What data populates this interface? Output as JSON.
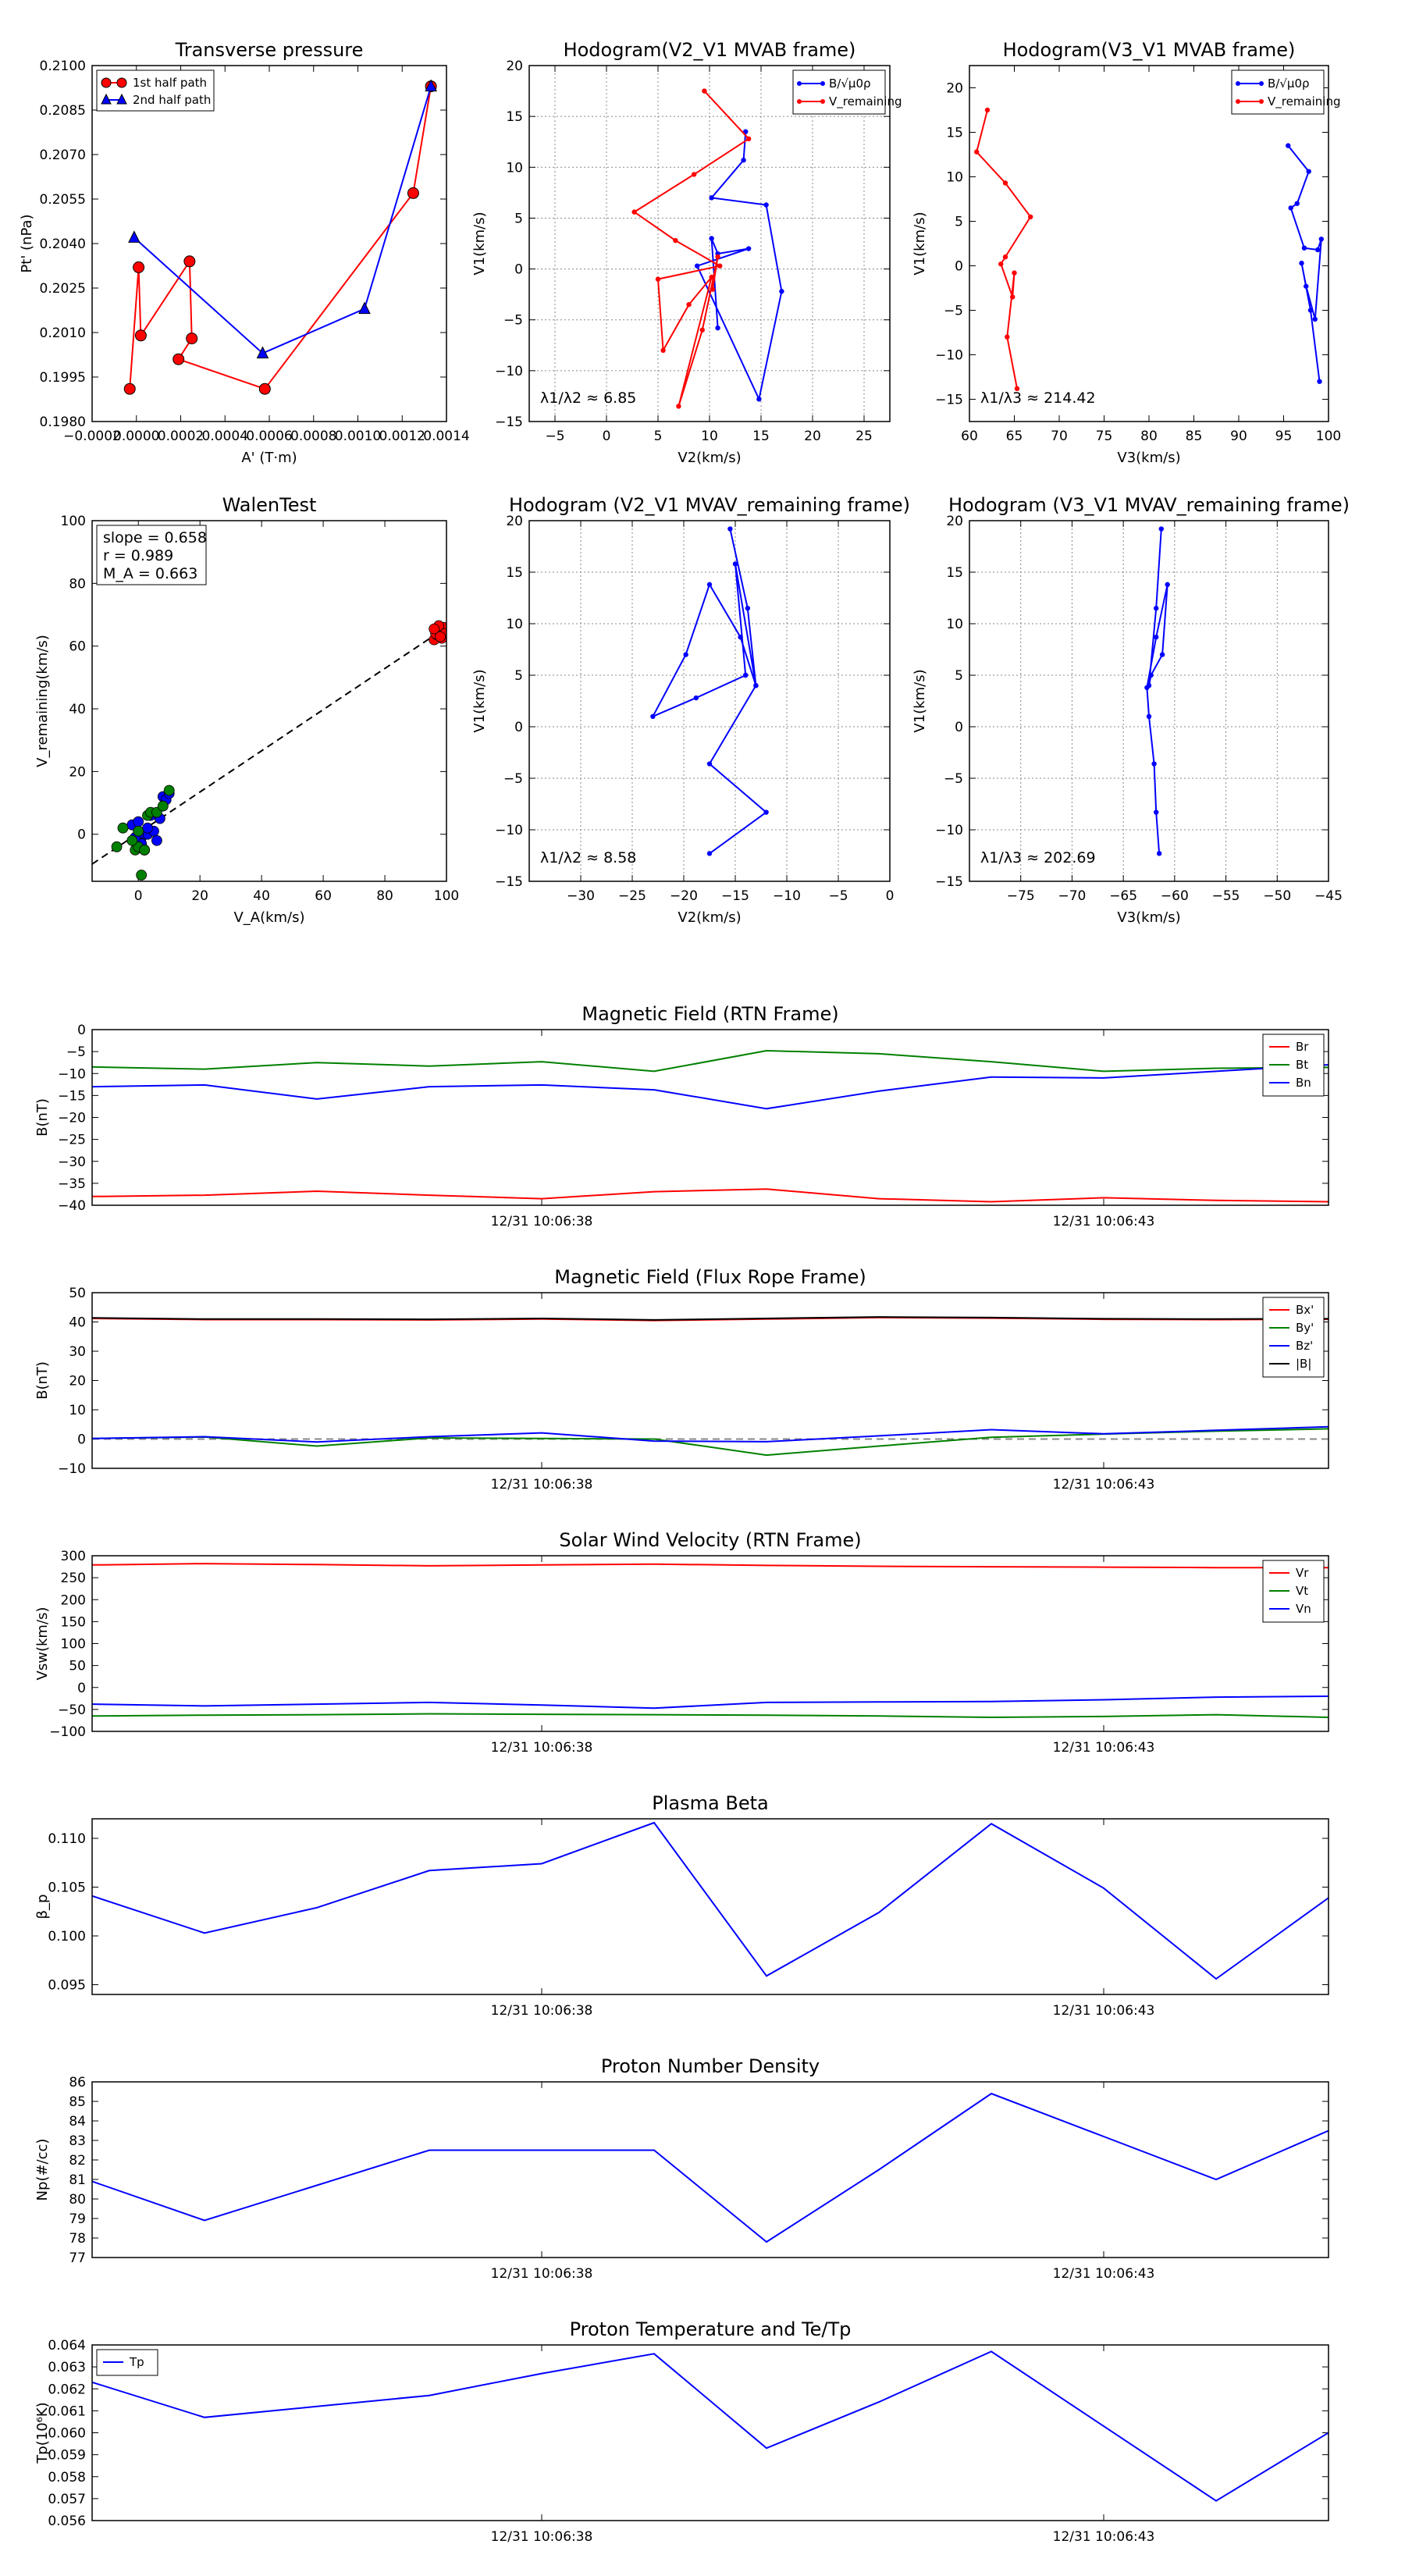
{
  "chart_data": [
    {
      "id": "tp",
      "type": "line",
      "title": "Transverse pressure",
      "xlabel": "A' (T·m)",
      "ylabel": "Pt' (nPa)",
      "xlim": [
        -0.0002,
        0.0014
      ],
      "ylim": [
        0.198,
        0.21
      ],
      "xticks": [
        -0.0002,
        0.0,
        0.0002,
        0.0004,
        0.0006,
        0.0008,
        0.001,
        0.0012,
        0.0014
      ],
      "xtick_labels": [
        "−0.0002",
        "0.0000",
        "0.0002",
        "0.0004",
        "0.0006",
        "0.0008",
        "0.0010",
        "0.0012",
        "0.0014"
      ],
      "yticks": [
        0.198,
        0.1995,
        0.201,
        0.2025,
        0.204,
        0.2055,
        0.207,
        0.2085,
        0.21
      ],
      "ytick_labels": [
        "0.1980",
        "0.1995",
        "0.2010",
        "0.2025",
        "0.2040",
        "0.2055",
        "0.2070",
        "0.2085",
        "0.2100"
      ],
      "legend": [
        "1st half path",
        "2nd half path"
      ],
      "series": [
        {
          "name": "1st half path",
          "color": "#ff0000",
          "marker": "circle",
          "x": [
            0.00133,
            0.00125,
            0.00058,
            0.00019,
            0.00025,
            0.00024,
            2e-05,
            1e-05,
            -3e-05
          ],
          "y": [
            0.2093,
            0.2057,
            0.1991,
            0.2001,
            0.2008,
            0.2034,
            0.2009,
            0.2032,
            0.1991
          ]
        },
        {
          "name": "2nd half path",
          "color": "#0000ff",
          "marker": "triangle",
          "x": [
            -1e-05,
            0.00057,
            0.00103,
            0.00133
          ],
          "y": [
            0.2042,
            0.2003,
            0.2018,
            0.2093
          ]
        }
      ]
    },
    {
      "id": "h1",
      "type": "line",
      "title": "Hodogram(V2_V1 MVAB frame)",
      "xlabel": "V2(km/s)",
      "ylabel": "V1(km/s)",
      "xlim": [
        -7.5,
        27.5
      ],
      "ylim": [
        -15,
        20
      ],
      "xticks": [
        -5,
        0,
        5,
        10,
        15,
        20,
        25
      ],
      "yticks": [
        -15,
        -10,
        -5,
        0,
        5,
        10,
        15,
        20
      ],
      "grid": true,
      "legend_labels": [
        "B/√μ0ρ",
        "V_remaining"
      ],
      "annotation_prefix": "λ1/λ2 ≈ ",
      "annotation_value": "6.85",
      "series": [
        {
          "name": "B",
          "color": "#0000ff",
          "x": [
            13.5,
            13.3,
            10.2,
            15.5,
            17.0,
            14.8,
            8.8,
            13.8,
            10.8,
            10.2,
            10.8
          ],
          "y": [
            13.5,
            10.7,
            7.0,
            6.3,
            -2.2,
            -12.8,
            0.3,
            2.0,
            1.5,
            3.0,
            -5.8
          ]
        },
        {
          "name": "V",
          "color": "#ff0000",
          "x": [
            9.5,
            13.8,
            8.5,
            2.7,
            6.7,
            11.0,
            5.0,
            5.5,
            8.0,
            10.2,
            7.0,
            9.3,
            10.8,
            10.3
          ],
          "y": [
            17.5,
            12.8,
            9.3,
            5.6,
            2.8,
            0.3,
            -1.0,
            -8.0,
            -3.5,
            -0.8,
            -13.5,
            -6.0,
            1.2,
            -2.0
          ]
        }
      ]
    },
    {
      "id": "h2",
      "type": "line",
      "title": "Hodogram(V3_V1 MVAB frame)",
      "xlabel": "V3(km/s)",
      "ylabel": "V1(km/s)",
      "xlim": [
        60,
        100
      ],
      "ylim": [
        -17.5,
        22.5
      ],
      "xticks": [
        60,
        65,
        70,
        75,
        80,
        85,
        90,
        95,
        100
      ],
      "yticks": [
        -15,
        -10,
        -5,
        0,
        5,
        10,
        15,
        20
      ],
      "legend_labels": [
        "B/√μ0ρ",
        "V_remaining"
      ],
      "annotation_prefix": "λ1/λ3 ≈ ",
      "annotation_value": "214.42",
      "series": [
        {
          "name": "B",
          "color": "#0000ff",
          "x": [
            95.5,
            97.8,
            96.5,
            95.8,
            97.3,
            98.8,
            99.2,
            98.5,
            97.5,
            97.0,
            98.0,
            99.0
          ],
          "y": [
            13.5,
            10.6,
            7.0,
            6.5,
            2.0,
            1.8,
            3.0,
            -6.0,
            -2.3,
            0.3,
            -5.0,
            -13.0
          ]
        },
        {
          "name": "V",
          "color": "#ff0000",
          "x": [
            62.0,
            60.8,
            64.0,
            66.8,
            64.0,
            63.5,
            64.8,
            65.0,
            64.2,
            65.3
          ],
          "y": [
            17.5,
            12.8,
            9.3,
            5.5,
            1.0,
            0.2,
            -3.5,
            -0.8,
            -8.0,
            -13.8
          ]
        }
      ]
    },
    {
      "id": "wt",
      "type": "scatter",
      "title": "WalenTest",
      "xlabel": "V_A(km/s)",
      "ylabel": "V_remaining(km/s)",
      "xlim": [
        -15,
        100
      ],
      "ylim": [
        -15,
        100
      ],
      "xticks": [
        0,
        20,
        40,
        60,
        80,
        100
      ],
      "yticks": [
        0,
        20,
        40,
        60,
        80,
        100
      ],
      "fit_line": {
        "x": [
          -15,
          100
        ],
        "y": [
          -9.5,
          66
        ]
      },
      "stats": [
        "slope = 0.658",
        "r = 0.989",
        "M_A = 0.663"
      ],
      "series": [
        {
          "name": "red",
          "color": "#ff0000",
          "x": [
            96,
            97,
            98,
            99,
            96.5,
            98.5,
            97.5,
            99.5,
            96,
            98
          ],
          "y": [
            62,
            63.5,
            65,
            66,
            64,
            62.5,
            66.5,
            64,
            65.5,
            63
          ]
        },
        {
          "name": "blue",
          "color": "#0000ff",
          "x": [
            -2,
            0,
            1,
            3,
            4,
            5,
            6,
            8,
            9,
            10,
            2,
            1,
            0,
            3,
            -1,
            7
          ],
          "y": [
            3,
            4,
            -1,
            0,
            6,
            1,
            -2,
            12,
            11,
            13,
            -5,
            -3,
            0,
            2,
            -1,
            5
          ]
        },
        {
          "name": "green",
          "color": "#008000",
          "x": [
            -7,
            -5,
            -1,
            0,
            2,
            3,
            4,
            6,
            8,
            10,
            1,
            -2,
            0,
            2
          ],
          "y": [
            -4,
            2,
            -5,
            -4,
            -5,
            6,
            7,
            7,
            9,
            14,
            -13,
            -2,
            1,
            -5
          ]
        }
      ]
    },
    {
      "id": "h3",
      "type": "line",
      "title": "Hodogram (V2_V1 MVAV_remaining frame)",
      "xlabel": "V2(km/s)",
      "ylabel": "V1(km/s)",
      "xlim": [
        -35,
        0
      ],
      "ylim": [
        -15,
        20
      ],
      "xticks": [
        -30,
        -25,
        -20,
        -15,
        -10,
        -5,
        0
      ],
      "yticks": [
        -15,
        -10,
        -5,
        0,
        5,
        10,
        15,
        20
      ],
      "grid": true,
      "annotation_prefix": "λ1/λ2 ≈ ",
      "annotation_value": "8.58",
      "series": [
        {
          "name": "V",
          "color": "#0000ff",
          "x": [
            -15.5,
            -13.8,
            -13.0,
            -14.5,
            -17.5,
            -19.8,
            -23.0,
            -18.8,
            -14.0,
            -14.0,
            -15.0,
            -13.0,
            -17.5,
            -12.0,
            -17.5
          ],
          "y": [
            19.2,
            11.5,
            4.0,
            8.7,
            13.8,
            7.0,
            1.0,
            2.8,
            5.0,
            5.0,
            15.8,
            4.0,
            -3.6,
            -8.3,
            -12.3
          ]
        }
      ]
    },
    {
      "id": "h4",
      "type": "line",
      "title": "Hodogram (V3_V1 MVAV_remaining frame)",
      "xlabel": "V3(km/s)",
      "ylabel": "V1(km/s)",
      "xlim": [
        -80,
        -45
      ],
      "ylim": [
        -15,
        20
      ],
      "xticks": [
        -75,
        -70,
        -65,
        -60,
        -55,
        -50,
        -45
      ],
      "yticks": [
        -15,
        -10,
        -5,
        0,
        5,
        10,
        15,
        20
      ],
      "grid": true,
      "annotation_prefix": "λ1/λ3 ≈ ",
      "annotation_value": "202.69",
      "series": [
        {
          "name": "V",
          "color": "#0000ff",
          "x": [
            -61.3,
            -61.8,
            -62.5,
            -62.3,
            -61.2,
            -60.7,
            -61.8,
            -62.7,
            -62.5,
            -62.0,
            -61.8,
            -61.5
          ],
          "y": [
            19.2,
            11.5,
            4.0,
            5.0,
            7.0,
            13.8,
            8.7,
            3.8,
            1.0,
            -3.6,
            -8.3,
            -12.3
          ]
        }
      ]
    },
    {
      "id": "mf",
      "type": "line",
      "title": "Magnetic Field (RTN Frame)",
      "ylabel": "B(nT)",
      "xlim": [
        0,
        11
      ],
      "ylim": [
        -40,
        0
      ],
      "yticks": [
        -40,
        -35,
        -30,
        -25,
        -20,
        -15,
        -10,
        -5,
        0
      ],
      "time_ticks": [
        {
          "x": 4,
          "label": "12/31 10:06:38"
        },
        {
          "x": 9,
          "label": "12/31 10:06:43"
        }
      ],
      "legend": [
        "Br",
        "Bt",
        "Bn"
      ],
      "x": [
        0,
        1,
        2,
        3,
        4,
        5,
        6,
        7,
        8,
        9,
        10,
        11
      ],
      "series": [
        {
          "name": "Br",
          "color": "#ff0000",
          "values": [
            -38.0,
            -37.7,
            -36.8,
            -37.7,
            -38.5,
            -36.9,
            -36.3,
            -38.5,
            -39.2,
            -38.3,
            -38.9,
            -39.2
          ]
        },
        {
          "name": "Bt",
          "color": "#008000",
          "values": [
            -8.5,
            -9.0,
            -7.5,
            -8.3,
            -7.3,
            -9.5,
            -4.8,
            -5.5,
            -7.3,
            -9.5,
            -8.8,
            -8.6
          ]
        },
        {
          "name": "Bn",
          "color": "#0000ff",
          "values": [
            -13.0,
            -12.6,
            -15.8,
            -13.0,
            -12.6,
            -13.7,
            -18.0,
            -14.0,
            -10.8,
            -11.0,
            -9.5,
            -8.0
          ]
        }
      ]
    },
    {
      "id": "fr",
      "type": "line",
      "title": "Magnetic Field (Flux Rope Frame)",
      "ylabel": "B(nT)",
      "xlim": [
        0,
        11
      ],
      "ylim": [
        -10,
        50
      ],
      "yticks": [
        -10,
        0,
        10,
        20,
        30,
        40,
        50
      ],
      "time_ticks": [
        {
          "x": 4,
          "label": "12/31 10:06:38"
        },
        {
          "x": 9,
          "label": "12/31 10:06:43"
        }
      ],
      "legend": [
        "Bx'",
        "By'",
        "Bz'",
        "|B|"
      ],
      "zero_dashed": true,
      "x": [
        0,
        1,
        2,
        3,
        4,
        5,
        6,
        7,
        8,
        9,
        10,
        11
      ],
      "series": [
        {
          "name": "Bx'",
          "color": "#ff0000",
          "values": [
            41.2,
            40.8,
            40.8,
            40.7,
            41.0,
            40.5,
            41.0,
            41.5,
            41.3,
            40.9,
            40.8,
            40.9
          ]
        },
        {
          "name": "By'",
          "color": "#008000",
          "values": [
            0.2,
            0.7,
            -2.4,
            0.4,
            0.2,
            0.0,
            -5.5,
            -2.4,
            0.6,
            1.7,
            2.7,
            3.5
          ]
        },
        {
          "name": "Bz'",
          "color": "#0000ff",
          "values": [
            0.2,
            0.8,
            -1.0,
            0.8,
            2.1,
            -0.7,
            -0.9,
            1.1,
            3.2,
            1.8,
            3.0,
            4.2
          ]
        },
        {
          "name": "|B|",
          "color": "#000000",
          "values": [
            41.4,
            41.0,
            41.0,
            40.9,
            41.2,
            40.7,
            41.2,
            41.7,
            41.5,
            41.1,
            41.0,
            41.1
          ]
        }
      ]
    },
    {
      "id": "sw",
      "type": "line",
      "title": "Solar Wind Velocity (RTN Frame)",
      "ylabel": "Vsw(km/s)",
      "xlim": [
        0,
        11
      ],
      "ylim": [
        -100,
        300
      ],
      "yticks": [
        -100,
        -50,
        0,
        50,
        100,
        150,
        200,
        250,
        300
      ],
      "time_ticks": [
        {
          "x": 4,
          "label": "12/31 10:06:38"
        },
        {
          "x": 9,
          "label": "12/31 10:06:43"
        }
      ],
      "legend": [
        "Vr",
        "Vt",
        "Vn"
      ],
      "x": [
        0,
        1,
        2,
        3,
        4,
        5,
        6,
        7,
        8,
        9,
        10,
        11
      ],
      "series": [
        {
          "name": "Vr",
          "color": "#ff0000",
          "values": [
            279,
            282,
            280,
            277,
            279,
            281,
            278,
            276,
            275,
            274,
            273,
            273
          ]
        },
        {
          "name": "Vt",
          "color": "#008000",
          "values": [
            -65,
            -63,
            -62,
            -60,
            -61,
            -62,
            -63,
            -65,
            -68,
            -66,
            -62,
            -68
          ]
        },
        {
          "name": "Vn",
          "color": "#0000ff",
          "values": [
            -38,
            -42,
            -38,
            -34,
            -40,
            -47,
            -34,
            -33,
            -32,
            -28,
            -22,
            -20
          ]
        }
      ]
    },
    {
      "id": "pb",
      "type": "line",
      "title": "Plasma Beta",
      "ylabel": "β_p",
      "xlim": [
        0,
        11
      ],
      "ylim": [
        0.094,
        0.112
      ],
      "yticks": [
        0.095,
        0.1,
        0.105,
        0.11
      ],
      "ytick_labels": [
        "0.095",
        "0.100",
        "0.105",
        "0.110"
      ],
      "time_ticks": [
        {
          "x": 4,
          "label": "12/31 10:06:38"
        },
        {
          "x": 9,
          "label": "12/31 10:06:43"
        }
      ],
      "x": [
        0,
        1,
        2,
        3,
        4,
        5,
        6,
        7,
        8,
        9,
        10,
        11
      ],
      "series": [
        {
          "name": "beta",
          "color": "#0000ff",
          "values": [
            0.1041,
            0.1003,
            0.1029,
            0.1067,
            0.1074,
            0.1116,
            0.0959,
            0.1024,
            0.1115,
            0.1049,
            0.0956,
            0.1039
          ]
        }
      ]
    },
    {
      "id": "nd",
      "type": "line",
      "title": "Proton Number Density",
      "ylabel": "Np(#/cc)",
      "xlim": [
        0,
        11
      ],
      "ylim": [
        77,
        86
      ],
      "yticks": [
        77,
        78,
        79,
        80,
        81,
        82,
        83,
        84,
        85,
        86
      ],
      "time_ticks": [
        {
          "x": 4,
          "label": "12/31 10:06:38"
        },
        {
          "x": 9,
          "label": "12/31 10:06:43"
        }
      ],
      "x": [
        0,
        1,
        2,
        3,
        4,
        5,
        6,
        7,
        8,
        9,
        10,
        11
      ],
      "series": [
        {
          "name": "Np",
          "color": "#0000ff",
          "values": [
            80.9,
            78.9,
            80.7,
            82.5,
            82.5,
            82.5,
            77.8,
            81.5,
            85.4,
            83.2,
            81.0,
            83.5
          ]
        }
      ]
    },
    {
      "id": "pt",
      "type": "line",
      "title": "Proton Temperature and Te/Tp",
      "ylabel": "Tp(10⁶K)",
      "xlim": [
        0,
        11
      ],
      "ylim": [
        0.056,
        0.064
      ],
      "yticks": [
        0.056,
        0.057,
        0.058,
        0.059,
        0.06,
        0.061,
        0.062,
        0.063,
        0.064
      ],
      "ytick_labels": [
        "0.056",
        "0.057",
        "0.058",
        "0.059",
        "0.060",
        "0.061",
        "0.062",
        "0.063",
        "0.064"
      ],
      "time_ticks": [
        {
          "x": 4,
          "label": "12/31 10:06:38"
        },
        {
          "x": 9,
          "label": "12/31 10:06:43"
        }
      ],
      "legend": [
        "Tp"
      ],
      "x": [
        0,
        1,
        2,
        3,
        4,
        5,
        6,
        7,
        8,
        9,
        10,
        11
      ],
      "series": [
        {
          "name": "Tp",
          "color": "#0000ff",
          "values": [
            0.0623,
            0.0607,
            0.0612,
            0.0617,
            0.0627,
            0.0636,
            0.0593,
            0.0614,
            0.0637,
            0.0603,
            0.0569,
            0.06
          ]
        }
      ]
    }
  ]
}
